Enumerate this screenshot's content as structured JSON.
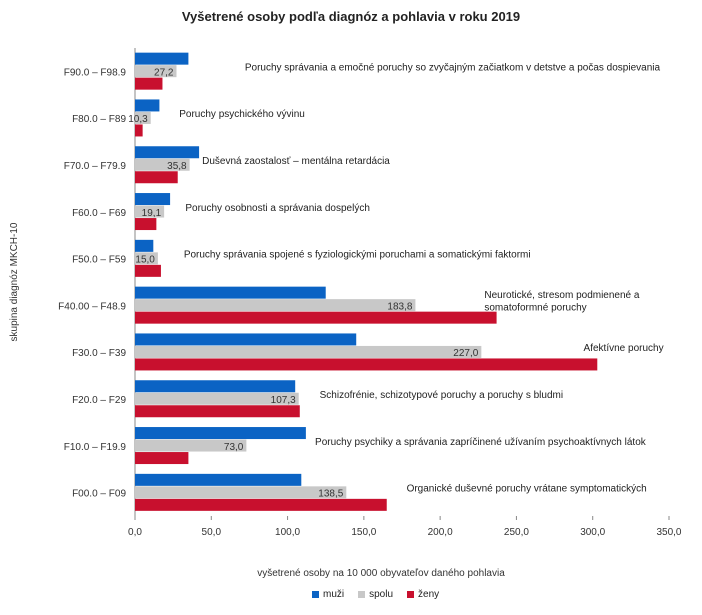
{
  "chart_data": {
    "type": "bar",
    "orientation": "horizontal",
    "title": "Vyšetrené osoby  podľa diagnóz a pohlavia v roku 2019",
    "xlabel": "vyšetrené osoby na 10 000 obyvateľov daného pohlavia",
    "ylabel": "skupina diagnóz MKCH-10",
    "xlim": [
      0,
      350
    ],
    "xticks": [
      "0,0",
      "50,0",
      "100,0",
      "150,0",
      "200,0",
      "250,0",
      "300,0",
      "350,0"
    ],
    "legend_position": "bottom",
    "categories": [
      "F90.0 – F98.9",
      "F80.0 – F89",
      "F70.0 – F79.9",
      "F60.0 – F69",
      "F50.0 – F59",
      "F40.00 – F48.9",
      "F30.0 – F39",
      "F20.0 – F29",
      "F10.0 – F19.9",
      "F00.0 – F09"
    ],
    "descriptions": [
      [
        "Poruchy správania a emočné poruchy so zvyčajným začiatkom v detstve a počas dospievania"
      ],
      [
        "Poruchy psychického vývinu"
      ],
      [
        "Duševná zaostalosť – mentálna  retardácia"
      ],
      [
        "Poruchy osobnosti a správania dospelých"
      ],
      [
        "Poruchy správania spojené s fyziologickými poruchami a somatickými  faktormi"
      ],
      [
        "Neurotické, stresom podmienené  a",
        "somatoformné poruchy"
      ],
      [
        "Afektívne poruchy"
      ],
      [
        "Schizofrénie, schizotypové poruchy a poruchy s bludmi"
      ],
      [
        "Poruchy psychiky a správania zapríčinené užívaním psychoaktívnych látok"
      ],
      [
        "Organické duševné poruchy vrátane symptomatických"
      ]
    ],
    "spolu_labels": [
      "27,2",
      "10,3",
      "35,8",
      "19,1",
      "15,0",
      "183,8",
      "227,0",
      "107,3",
      "73,0",
      "138,5"
    ],
    "series": [
      {
        "name": "muži",
        "color": "#0b63c4",
        "values": [
          35,
          16,
          42,
          23,
          12,
          125,
          145,
          105,
          112,
          109
        ]
      },
      {
        "name": "spolu",
        "color": "#c8c8c8",
        "values": [
          27.2,
          10.3,
          35.8,
          19.1,
          15.0,
          183.8,
          227.0,
          107.3,
          73.0,
          138.5
        ]
      },
      {
        "name": "ženy",
        "color": "#c8102e",
        "values": [
          18,
          5,
          28,
          14,
          17,
          237,
          303,
          108,
          35,
          165
        ]
      }
    ]
  }
}
